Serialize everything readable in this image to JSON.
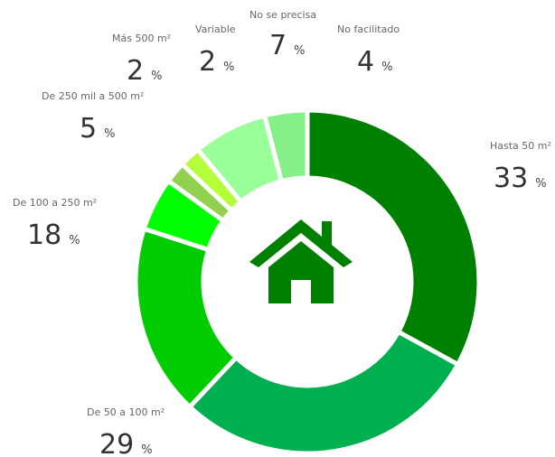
{
  "chart_data": {
    "type": "donut",
    "categories": [
      "Hasta 50 m²",
      "De 50 a 100 m²",
      "De 100 a 250 m²",
      "De 250 mil a 500 m²",
      "Más 500 m²",
      "Variable",
      "No se precisa",
      "No facilitado"
    ],
    "values": [
      33,
      29,
      18,
      5,
      2,
      2,
      7,
      4
    ],
    "colors": [
      "#008000",
      "#00b050",
      "#00cc00",
      "#00ff00",
      "#92d050",
      "#b5ff3a",
      "#99ff99",
      "#88f088"
    ],
    "unit": "%"
  }
}
